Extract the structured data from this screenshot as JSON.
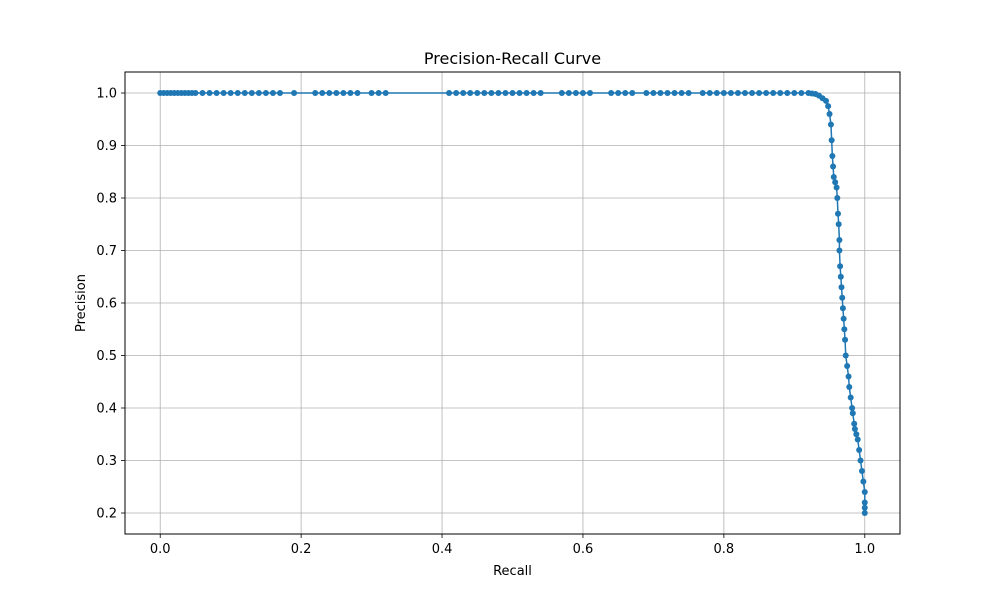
{
  "chart_data": {
    "type": "line",
    "title": "Precision-Recall Curve",
    "xlabel": "Recall",
    "ylabel": "Precision",
    "xlim": [
      -0.05,
      1.05
    ],
    "ylim": [
      0.16,
      1.04
    ],
    "xticks": [
      "0.0",
      "0.2",
      "0.4",
      "0.6",
      "0.8",
      "1.0"
    ],
    "yticks": [
      "0.2",
      "0.3",
      "0.4",
      "0.5",
      "0.6",
      "0.7",
      "0.8",
      "0.9",
      "1.0"
    ],
    "grid": true,
    "line_color": "#1f77b4",
    "marker": "circle",
    "series": [
      {
        "x": [
          0.0,
          0.005,
          0.01,
          0.015,
          0.02,
          0.025,
          0.03,
          0.035,
          0.04,
          0.045,
          0.05,
          0.06,
          0.07,
          0.08,
          0.09,
          0.1,
          0.11,
          0.12,
          0.13,
          0.14,
          0.15,
          0.16,
          0.17,
          0.19,
          0.22,
          0.23,
          0.24,
          0.25,
          0.26,
          0.27,
          0.28,
          0.3,
          0.31,
          0.32,
          0.41,
          0.42,
          0.43,
          0.44,
          0.45,
          0.46,
          0.47,
          0.48,
          0.49,
          0.5,
          0.51,
          0.52,
          0.53,
          0.54,
          0.57,
          0.58,
          0.59,
          0.6,
          0.61,
          0.64,
          0.65,
          0.66,
          0.67,
          0.69,
          0.7,
          0.71,
          0.72,
          0.73,
          0.74,
          0.75,
          0.77,
          0.78,
          0.79,
          0.8,
          0.81,
          0.82,
          0.83,
          0.84,
          0.85,
          0.86,
          0.87,
          0.88,
          0.89,
          0.9,
          0.91,
          0.92,
          0.925,
          0.93,
          0.935,
          0.94,
          0.945,
          0.948,
          0.95,
          0.952,
          0.953,
          0.954,
          0.955,
          0.956,
          0.958,
          0.96,
          0.961,
          0.962,
          0.963,
          0.964,
          0.964,
          0.965,
          0.966,
          0.967,
          0.968,
          0.969,
          0.97,
          0.971,
          0.972,
          0.973,
          0.975,
          0.977,
          0.978,
          0.98,
          0.982,
          0.983,
          0.985,
          0.986,
          0.988,
          0.99,
          0.992,
          0.994,
          0.996,
          0.998,
          1.0,
          1.0,
          1.0,
          1.0
        ],
        "y": [
          1.0,
          1.0,
          1.0,
          1.0,
          1.0,
          1.0,
          1.0,
          1.0,
          1.0,
          1.0,
          1.0,
          1.0,
          1.0,
          1.0,
          1.0,
          1.0,
          1.0,
          1.0,
          1.0,
          1.0,
          1.0,
          1.0,
          1.0,
          1.0,
          1.0,
          1.0,
          1.0,
          1.0,
          1.0,
          1.0,
          1.0,
          1.0,
          1.0,
          1.0,
          1.0,
          1.0,
          1.0,
          1.0,
          1.0,
          1.0,
          1.0,
          1.0,
          1.0,
          1.0,
          1.0,
          1.0,
          1.0,
          1.0,
          1.0,
          1.0,
          1.0,
          1.0,
          1.0,
          1.0,
          1.0,
          1.0,
          1.0,
          1.0,
          1.0,
          1.0,
          1.0,
          1.0,
          1.0,
          1.0,
          1.0,
          1.0,
          1.0,
          1.0,
          1.0,
          1.0,
          1.0,
          1.0,
          1.0,
          1.0,
          1.0,
          1.0,
          1.0,
          1.0,
          1.0,
          1.0,
          0.999,
          0.998,
          0.995,
          0.99,
          0.985,
          0.975,
          0.96,
          0.94,
          0.91,
          0.88,
          0.86,
          0.84,
          0.83,
          0.82,
          0.8,
          0.77,
          0.75,
          0.72,
          0.7,
          0.67,
          0.65,
          0.63,
          0.61,
          0.59,
          0.57,
          0.55,
          0.53,
          0.5,
          0.48,
          0.46,
          0.44,
          0.42,
          0.4,
          0.39,
          0.37,
          0.36,
          0.35,
          0.34,
          0.32,
          0.3,
          0.28,
          0.26,
          0.24,
          0.22,
          0.21,
          0.2
        ]
      }
    ]
  }
}
